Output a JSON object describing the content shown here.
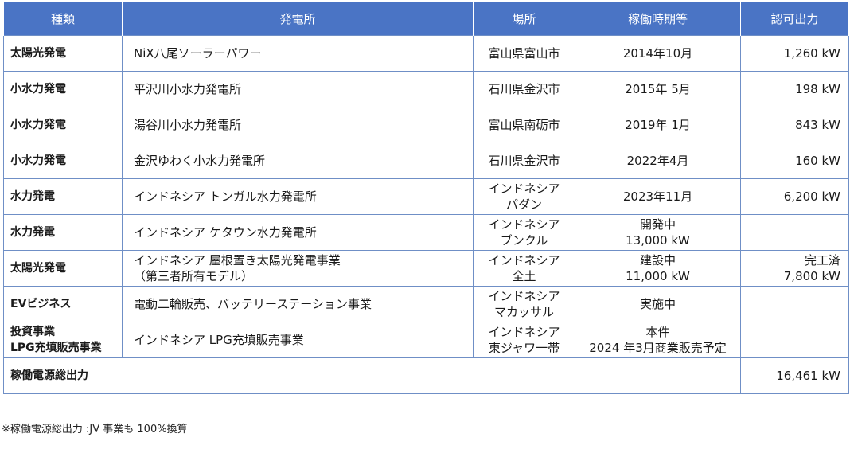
{
  "headers": {
    "type": "種類",
    "plant": "発電所",
    "location": "場所",
    "period": "稼働時期等",
    "capacity": "認可出力"
  },
  "rows": [
    {
      "type": "太陽光発電",
      "plant": "NiX八尾ソーラーパワー",
      "location": "富山県富山市",
      "period": "2014年10月",
      "capacity": "1,260 kW"
    },
    {
      "type": "小水力発電",
      "plant": "平沢川小水力発電所",
      "location": "石川県金沢市",
      "period": "2015年 5月",
      "capacity": "198 kW"
    },
    {
      "type": "小水力発電",
      "plant": "湯谷川小水力発電所",
      "location": "富山県南砺市",
      "period": "2019年 1月",
      "capacity": "843 kW"
    },
    {
      "type": "小水力発電",
      "plant": "金沢ゆわく小水力発電所",
      "location": "石川県金沢市",
      "period": "2022年4月",
      "capacity": "160 kW"
    },
    {
      "type": "水力発電",
      "plant": "インドネシア トンガル水力発電所",
      "location": "インドネシア\nパダン",
      "period": "2023年11月",
      "capacity": "6,200 kW"
    },
    {
      "type": "水力発電",
      "plant": "インドネシア ケタウン水力発電所",
      "location": "インドネシア\nブンクル",
      "period": "開発中\n13,000 kW",
      "capacity": ""
    },
    {
      "type": "太陽光発電",
      "plant": "インドネシア 屋根置き太陽光発電事業\n（第三者所有モデル）",
      "location": "インドネシア\n全土",
      "period": "建設中\n11,000 kW",
      "capacity": "完工済\n7,800 kW"
    },
    {
      "type": "EVビジネス",
      "plant": "電動二輪販売、バッテリーステーション事業",
      "location": "インドネシア\nマカッサル",
      "period": "実施中",
      "capacity": ""
    },
    {
      "type": "投資事業\nLPG充填販売事業",
      "plant": "インドネシア LPG充填販売事業",
      "location": "インドネシア\n東ジャワ一帯",
      "period": "本件\n2024 年3月商業販売予定",
      "capacity": ""
    }
  ],
  "total": {
    "label": "稼働電源総出力",
    "value": "16,461 kW"
  },
  "note": "※稼働電源総出力 :JV 事業も 100%換算"
}
